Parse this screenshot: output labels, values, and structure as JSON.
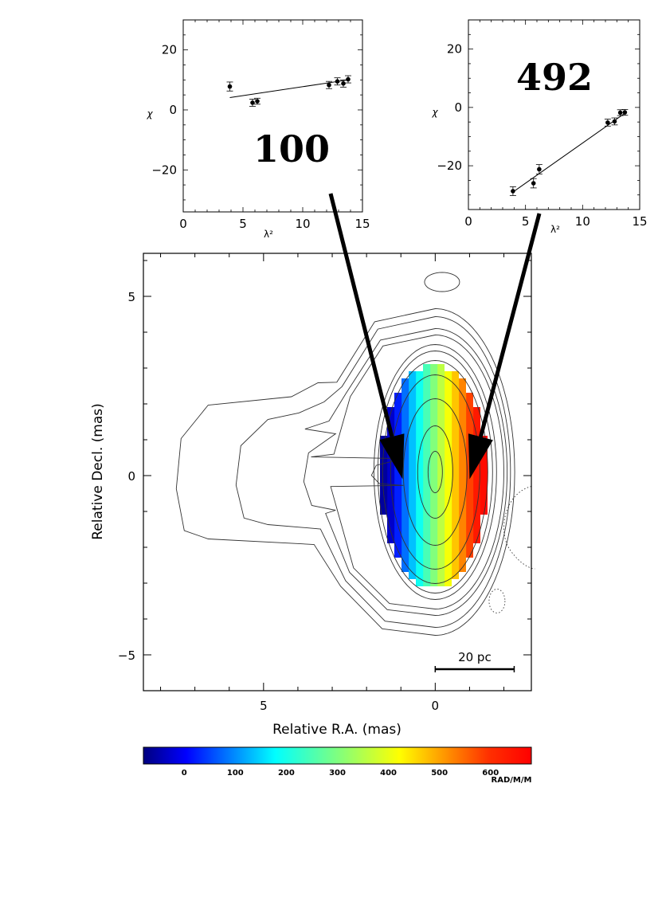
{
  "chart_data": [
    {
      "type": "scatter",
      "annotation": "100",
      "xlabel": "λ²",
      "ylabel": "χ",
      "xlim": [
        0,
        15
      ],
      "ylim": [
        -34,
        30
      ],
      "xticks": [
        0,
        5,
        10,
        15
      ],
      "yticks": [
        -20,
        0,
        20
      ],
      "points": [
        {
          "x": 3.9,
          "y": 7.8,
          "err": 1.5
        },
        {
          "x": 5.8,
          "y": 2.4,
          "err": 1.2
        },
        {
          "x": 6.2,
          "y": 2.9,
          "err": 1.0
        },
        {
          "x": 12.2,
          "y": 8.3,
          "err": 1.2
        },
        {
          "x": 12.9,
          "y": 9.5,
          "err": 1.2
        },
        {
          "x": 13.4,
          "y": 8.8,
          "err": 1.2
        },
        {
          "x": 13.8,
          "y": 10.2,
          "err": 1.2
        }
      ],
      "fit_line": {
        "x": [
          3.9,
          13.8
        ],
        "y": [
          4.1,
          10.0
        ]
      }
    },
    {
      "type": "scatter",
      "annotation": "492",
      "xlabel": "λ²",
      "ylabel": "χ",
      "xlim": [
        0,
        15
      ],
      "ylim": [
        -35,
        30
      ],
      "xticks": [
        0,
        5,
        10,
        15
      ],
      "yticks": [
        -20,
        0,
        20
      ],
      "points": [
        {
          "x": 3.9,
          "y": -28.7,
          "err": 1.5
        },
        {
          "x": 5.7,
          "y": -26.0,
          "err": 1.6
        },
        {
          "x": 6.2,
          "y": -21.2,
          "err": 1.6
        },
        {
          "x": 12.2,
          "y": -5.2,
          "err": 1.2
        },
        {
          "x": 12.8,
          "y": -4.8,
          "err": 1.2
        },
        {
          "x": 13.3,
          "y": -1.8,
          "err": 1.0
        },
        {
          "x": 13.7,
          "y": -1.7,
          "err": 1.0
        }
      ],
      "fit_line": {
        "x": [
          3.9,
          13.7
        ],
        "y": [
          -29.0,
          -2.0
        ]
      }
    },
    {
      "type": "heatmap",
      "xlabel": "Relative R.A. (mas)",
      "ylabel": "Relative Decl. (mas)",
      "xlim": [
        8.5,
        -2.8
      ],
      "ylim": [
        -6,
        6.2
      ],
      "xticks": [
        5,
        0
      ],
      "yticks": [
        5,
        0,
        -5
      ],
      "scale_bar": {
        "label": "20 pc",
        "from": 0,
        "to": -2.3,
        "y": -5.4
      },
      "colorbar": {
        "label": "RAD/M/M",
        "range": [
          -80,
          680
        ],
        "ticks": [
          0,
          100,
          200,
          300,
          400,
          500,
          600
        ]
      },
      "rm_gradient": {
        "left_value": -60,
        "right_value": 660,
        "x_from": 1.4,
        "x_to": -1.3
      },
      "arrows": [
        {
          "panel": "100",
          "tip_x": 0.95,
          "tip_y": -0.1
        },
        {
          "panel": "492",
          "tip_x": -1.0,
          "tip_y": -0.1
        }
      ]
    }
  ]
}
